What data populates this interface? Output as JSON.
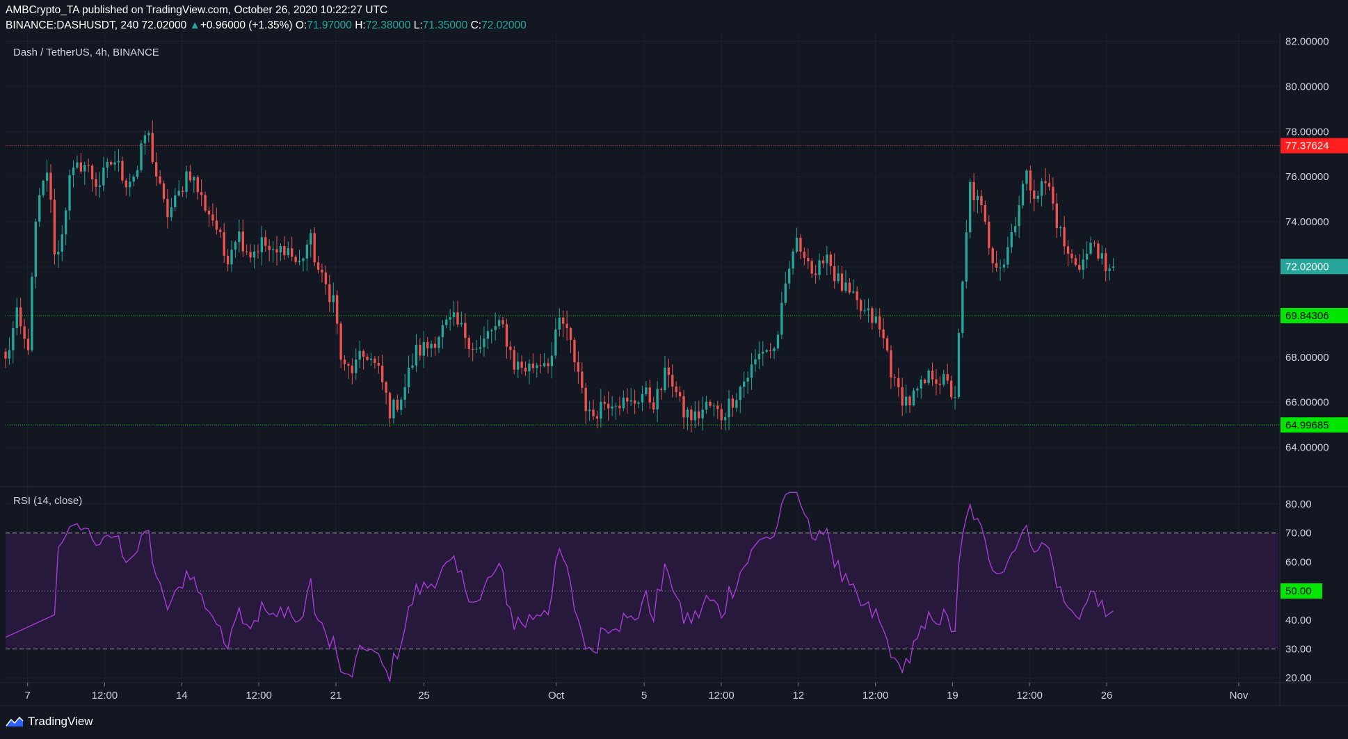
{
  "header": {
    "published": "AMBCrypto_TA published on TradingView.com, October 26, 2020 10:22:27 UTC",
    "symbol": "BINANCE:DASHUSDT, 240",
    "last": "72.02000",
    "arrow": "▲",
    "change": "+0.96000 (+1.35%)",
    "o_label": "O:",
    "o": "71.97000",
    "h_label": "H:",
    "h": "72.38000",
    "l_label": "L:",
    "l": "71.35000",
    "c_label": "C:",
    "c": "72.02000"
  },
  "price_pane": {
    "title": "Dash / TetherUS, 4h, BINANCE"
  },
  "rsi_pane": {
    "title": "RSI (14, close)"
  },
  "footer": {
    "brand": "TradingView"
  },
  "colors": {
    "background": "#131722",
    "up": "#26a69a",
    "down": "#ef5350",
    "rsi_line": "#9c27b0",
    "rsi_band": "#2a1a3e",
    "resistance": "#ff1f1f",
    "support": "#00e600"
  },
  "chart_data": [
    {
      "type": "candlestick",
      "title": "Dash / TetherUS, 4h, BINANCE",
      "ylim": [
        62.0,
        82.0
      ],
      "y_ticks": [
        "64.00000",
        "66.00000",
        "68.00000",
        "70.00000",
        "72.00000",
        "74.00000",
        "76.00000",
        "78.00000",
        "80.00000",
        "82.00000"
      ],
      "x_ticks": [
        "7",
        "12:00",
        "14",
        "12:00",
        "21",
        "25",
        "Oct",
        "5",
        "12:00",
        "12",
        "12:00",
        "19",
        "12:00",
        "26",
        "Nov"
      ],
      "x_tick_days": [
        7,
        10.5,
        14,
        17.5,
        21,
        25,
        31,
        35,
        38.5,
        42,
        45.5,
        49,
        52.5,
        56,
        62
      ],
      "x_range_days": [
        6.0,
        63.8
      ],
      "price_labels": [
        {
          "value": 77.37624,
          "text": "77.37624",
          "color": "#ff1f1f",
          "line": "dotted"
        },
        {
          "value": 72.02,
          "text": "72.02000",
          "color": "#26a69a",
          "line": "none"
        },
        {
          "value": 69.84306,
          "text": "69.84306",
          "color": "#00e600",
          "line": "dotted"
        },
        {
          "value": 64.99685,
          "text": "64.99685",
          "color": "#00e600",
          "line": "dotted"
        }
      ],
      "anchors": [
        [
          6.0,
          67.8
        ],
        [
          6.5,
          69.8
        ],
        [
          7.0,
          68.2
        ],
        [
          7.4,
          74.3
        ],
        [
          7.9,
          76.4
        ],
        [
          8.3,
          72.0
        ],
        [
          8.9,
          75.8
        ],
        [
          9.5,
          76.7
        ],
        [
          10.2,
          75.6
        ],
        [
          10.9,
          76.8
        ],
        [
          11.5,
          75.8
        ],
        [
          12.0,
          76.3
        ],
        [
          12.4,
          78.2
        ],
        [
          12.9,
          75.8
        ],
        [
          13.3,
          74.3
        ],
        [
          13.8,
          75.0
        ],
        [
          14.3,
          76.4
        ],
        [
          14.9,
          75.0
        ],
        [
          15.5,
          74.0
        ],
        [
          16.0,
          72.3
        ],
        [
          16.5,
          73.6
        ],
        [
          17.1,
          72.6
        ],
        [
          17.7,
          73.1
        ],
        [
          18.2,
          72.4
        ],
        [
          18.7,
          73.0
        ],
        [
          19.3,
          72.0
        ],
        [
          19.8,
          73.3
        ],
        [
          20.3,
          71.5
        ],
        [
          20.9,
          70.6
        ],
        [
          21.3,
          67.4
        ],
        [
          21.8,
          67.5
        ],
        [
          22.4,
          68.2
        ],
        [
          23.0,
          67.2
        ],
        [
          23.5,
          65.5
        ],
        [
          24.1,
          66.6
        ],
        [
          24.6,
          68.2
        ],
        [
          25.2,
          68.5
        ],
        [
          25.8,
          69.2
        ],
        [
          26.3,
          69.6
        ],
        [
          26.9,
          69.0
        ],
        [
          27.5,
          68.2
        ],
        [
          28.0,
          69.2
        ],
        [
          28.6,
          69.3
        ],
        [
          29.1,
          67.7
        ],
        [
          29.7,
          67.5
        ],
        [
          30.2,
          67.8
        ],
        [
          30.8,
          68.0
        ],
        [
          31.2,
          69.8
        ],
        [
          31.6,
          68.7
        ],
        [
          32.0,
          67.4
        ],
        [
          32.5,
          65.3
        ],
        [
          33.1,
          66.0
        ],
        [
          33.7,
          66.2
        ],
        [
          34.3,
          65.8
        ],
        [
          34.9,
          66.4
        ],
        [
          35.5,
          66.0
        ],
        [
          36.1,
          67.5
        ],
        [
          36.7,
          65.6
        ],
        [
          37.3,
          65.3
        ],
        [
          37.9,
          65.9
        ],
        [
          38.5,
          65.4
        ],
        [
          39.1,
          66.3
        ],
        [
          39.7,
          67.2
        ],
        [
          40.4,
          68.4
        ],
        [
          40.9,
          68.3
        ],
        [
          41.4,
          70.8
        ],
        [
          41.8,
          73.0
        ],
        [
          42.3,
          72.8
        ],
        [
          42.8,
          71.2
        ],
        [
          43.2,
          72.9
        ],
        [
          43.7,
          71.5
        ],
        [
          44.3,
          70.7
        ],
        [
          44.9,
          70.0
        ],
        [
          45.5,
          69.6
        ],
        [
          46.0,
          68.4
        ],
        [
          46.4,
          66.6
        ],
        [
          47.0,
          66.0
        ],
        [
          47.5,
          66.5
        ],
        [
          48.1,
          67.3
        ],
        [
          48.7,
          66.8
        ],
        [
          49.1,
          66.2
        ],
        [
          49.5,
          71.7
        ],
        [
          49.8,
          75.6
        ],
        [
          50.3,
          74.5
        ],
        [
          50.8,
          72.5
        ],
        [
          51.3,
          72.1
        ],
        [
          51.8,
          74.0
        ],
        [
          52.3,
          76.0
        ],
        [
          52.8,
          75.3
        ],
        [
          53.3,
          75.8
        ],
        [
          53.8,
          73.8
        ],
        [
          54.3,
          72.3
        ],
        [
          54.9,
          72.2
        ],
        [
          55.5,
          73.2
        ],
        [
          56.0,
          71.4
        ],
        [
          56.3,
          72.0
        ]
      ],
      "n_candles": 295
    },
    {
      "type": "line",
      "title": "RSI (14, close)",
      "ylim": [
        16.0,
        86.0
      ],
      "y_ticks": [
        "20.00",
        "30.00",
        "40.00",
        "50.00",
        "60.00",
        "70.00",
        "80.00"
      ],
      "levels": [
        {
          "value": 70,
          "style": "dashed"
        },
        {
          "value": 50,
          "style": "dotted",
          "label": "50.00"
        },
        {
          "value": 30,
          "style": "dashed"
        }
      ],
      "band": [
        30,
        70
      ]
    }
  ]
}
